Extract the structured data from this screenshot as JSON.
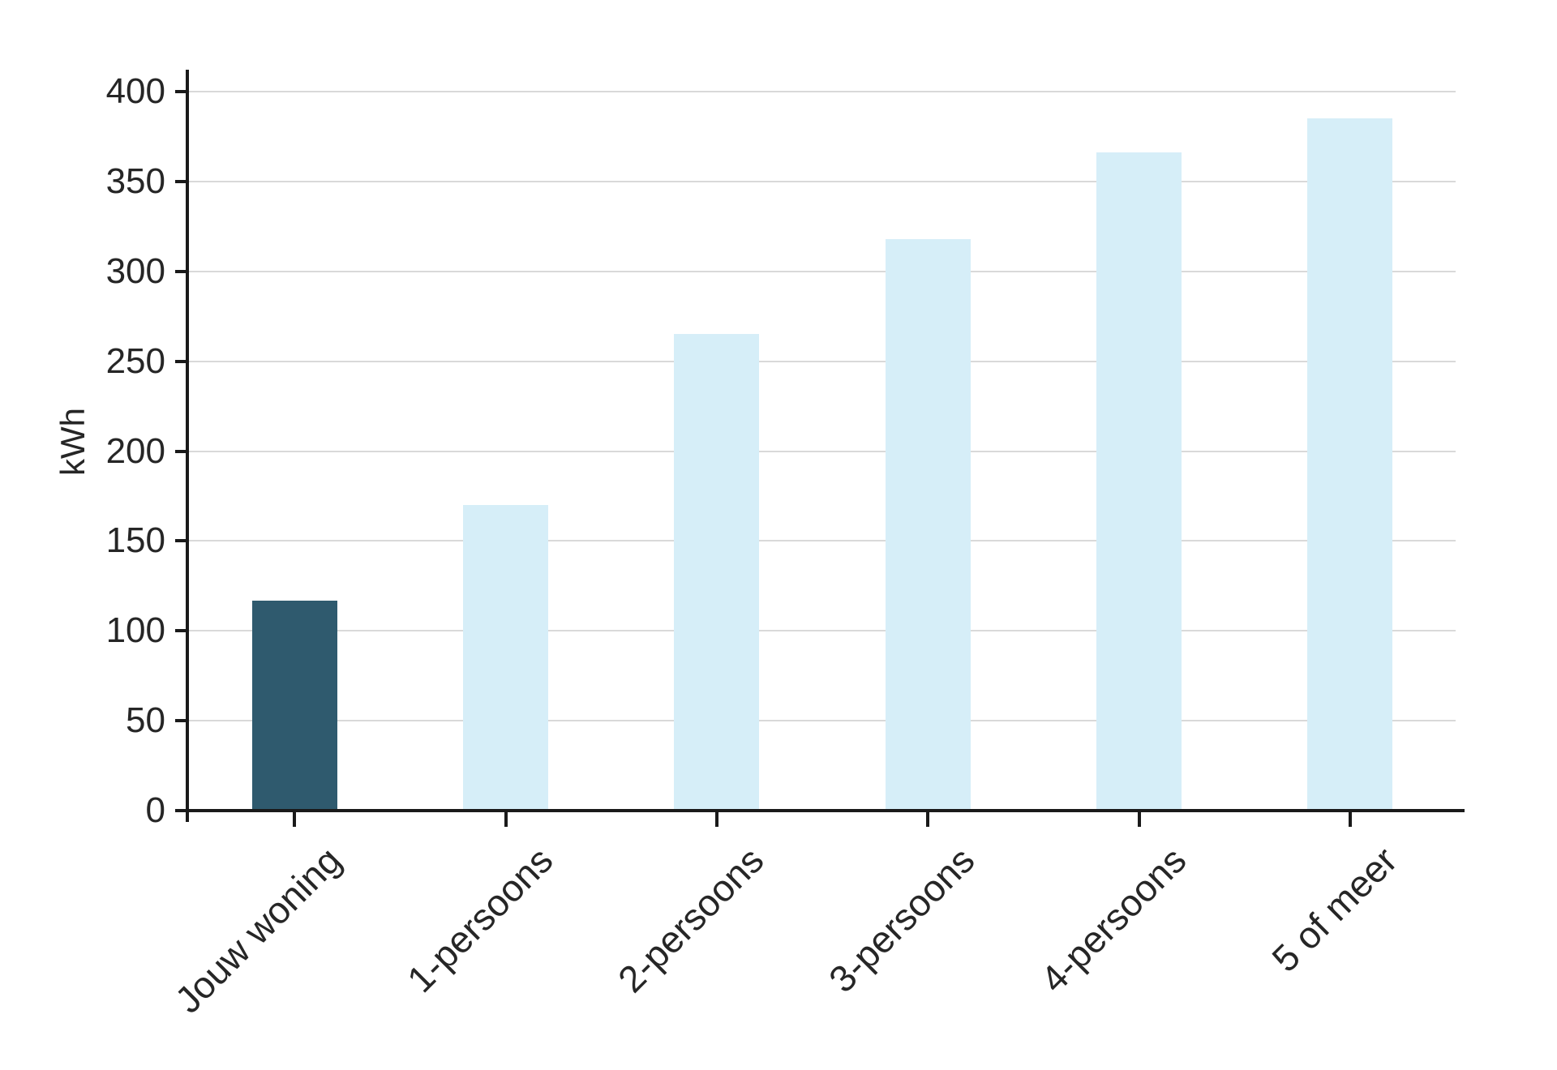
{
  "chart_data": {
    "type": "bar",
    "title": "",
    "xlabel": "",
    "ylabel": "kWh",
    "categories": [
      "Jouw woning",
      "1-persoons",
      "2-persoons",
      "3-persoons",
      "4-persoons",
      "5 of meer"
    ],
    "values": [
      117,
      170,
      265,
      318,
      366,
      385
    ],
    "ylim": [
      0,
      400
    ],
    "yticks": [
      0,
      50,
      100,
      150,
      200,
      250,
      300,
      350,
      400
    ],
    "grid": "horizontal",
    "legend": "none",
    "highlight_index": 0,
    "highlight_color": "#2f5a6e",
    "base_color": "#d6eef8",
    "gridline_color": "#d9d9d9",
    "axis_color": "#1a1a1a",
    "text_color": "#262626"
  }
}
